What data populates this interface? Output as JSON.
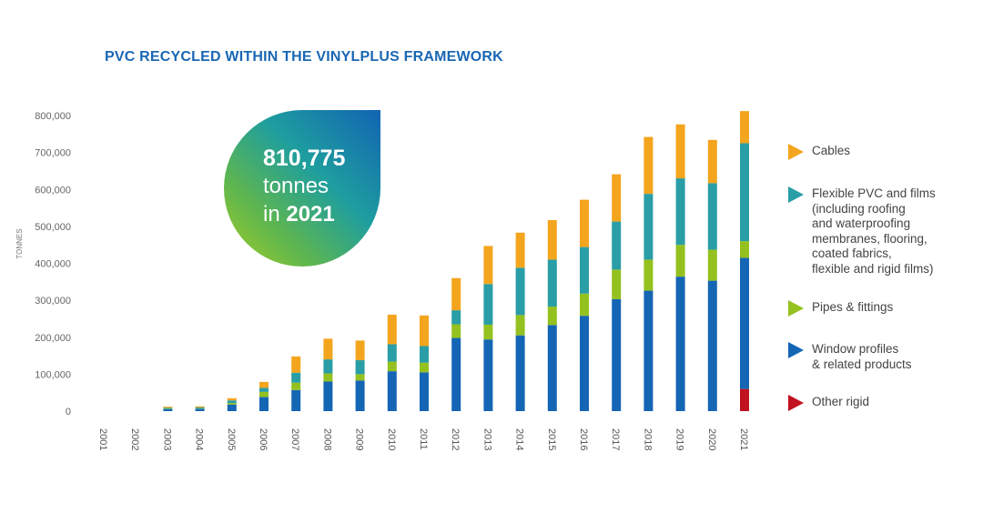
{
  "page": {
    "title": "PVC RECYCLED WITHIN THE VINYLPLUS FRAMEWORK"
  },
  "callout": {
    "value": "810,775",
    "unit": "tonnes",
    "prefix": "in",
    "year": "2021"
  },
  "colors": {
    "cables": "#f4a51e",
    "flexible": "#2a9ea6",
    "pipes": "#94c11f",
    "window": "#1565b5",
    "other": "#c1121f"
  },
  "legend": [
    {
      "key": "cables",
      "label": "Cables"
    },
    {
      "key": "flexible",
      "label": "Flexible PVC and films\n(including roofing\nand waterproofing\nmembranes, flooring,\ncoated fabrics,\nflexible and rigid films)"
    },
    {
      "key": "pipes",
      "label": "Pipes & fittings"
    },
    {
      "key": "window",
      "label": "Window profiles\n& related products"
    },
    {
      "key": "other",
      "label": "Other rigid"
    }
  ],
  "chart_data": {
    "type": "bar",
    "stacked": true,
    "title": "PVC RECYCLED WITHIN THE VINYLPLUS FRAMEWORK",
    "xlabel": "",
    "ylabel": "TONNES",
    "ylim": [
      0,
      800000
    ],
    "yticks": [
      0,
      100000,
      200000,
      300000,
      400000,
      500000,
      600000,
      700000,
      800000
    ],
    "ytick_labels": [
      "0",
      "100,000",
      "200,000",
      "300,000",
      "400,000",
      "500,000",
      "600,000",
      "700,000",
      "800,000"
    ],
    "categories": [
      "2001",
      "2002",
      "2003",
      "2004",
      "2005",
      "2006",
      "2007",
      "2008",
      "2009",
      "2010",
      "2011",
      "2012",
      "2013",
      "2014",
      "2015",
      "2016",
      "2017",
      "2018",
      "2019",
      "2020",
      "2021"
    ],
    "series": [
      {
        "name": "Other rigid",
        "key": "other",
        "values": [
          0,
          0,
          0,
          0,
          0,
          0,
          0,
          0,
          0,
          0,
          0,
          0,
          0,
          0,
          0,
          0,
          0,
          0,
          0,
          0,
          60000
        ]
      },
      {
        "name": "Window profiles & related products",
        "key": "window",
        "values": [
          0,
          0,
          5000,
          6000,
          18000,
          38000,
          57000,
          80000,
          83000,
          108000,
          105000,
          198000,
          194000,
          205000,
          233000,
          258000,
          303000,
          326000,
          364000,
          353000,
          355000
        ]
      },
      {
        "name": "Pipes & fittings",
        "key": "pipes",
        "values": [
          0,
          0,
          1000,
          1000,
          4000,
          14000,
          20000,
          22000,
          17000,
          26000,
          26000,
          37000,
          40000,
          55000,
          50000,
          60000,
          80000,
          84000,
          86000,
          84000,
          45000
        ]
      },
      {
        "name": "Flexible PVC and films (including roofing and waterproofing membranes, flooring, coated fabrics, flexible and rigid films)",
        "key": "flexible",
        "values": [
          0,
          0,
          3000,
          3000,
          7000,
          11000,
          27000,
          38000,
          38000,
          47000,
          45000,
          38000,
          110000,
          128000,
          127000,
          126000,
          130000,
          178000,
          180000,
          180000,
          265000
        ]
      },
      {
        "name": "Cables",
        "key": "cables",
        "values": [
          0,
          0,
          3000,
          3000,
          6000,
          16000,
          44000,
          56000,
          53000,
          80000,
          83000,
          87000,
          103000,
          95000,
          107000,
          128000,
          128000,
          154000,
          146000,
          117000,
          87000
        ]
      }
    ]
  }
}
